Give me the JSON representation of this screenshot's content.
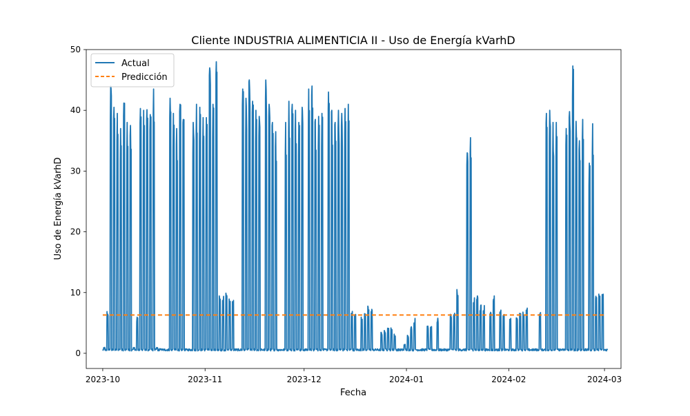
{
  "chart_data": {
    "type": "line",
    "title": "Cliente INDUSTRIA ALIMENTICIA II - Uso de Energía kVarhD",
    "xlabel": "Fecha",
    "ylabel": "Uso de Energía kVarhD",
    "xlim": [
      "2023-09-26",
      "2024-03-06"
    ],
    "ylim": [
      -2.5,
      50
    ],
    "x_ticks": [
      "2023-10-01",
      "2023-11-01",
      "2023-12-01",
      "2024-01-01",
      "2024-02-01",
      "2024-03-01"
    ],
    "x_tick_labels": [
      "2023-10",
      "2023-11",
      "2023-12",
      "2024-01",
      "2024-02",
      "2024-03"
    ],
    "y_ticks": [
      0,
      10,
      20,
      30,
      40,
      50
    ],
    "y_tick_labels": [
      "0",
      "10",
      "20",
      "30",
      "40",
      "50"
    ],
    "grid": false,
    "legend_position": "top-left",
    "baseline": 0.5,
    "series": [
      {
        "name": "Actual",
        "color": "#1f77b4",
        "style": "solid",
        "daily_peaks": [
          [
            "2023-10-01",
            1.0
          ],
          [
            "2023-10-02",
            7.0
          ],
          [
            "2023-10-03",
            44.0
          ],
          [
            "2023-10-04",
            40.5
          ],
          [
            "2023-10-05",
            39.5
          ],
          [
            "2023-10-06",
            37.0
          ],
          [
            "2023-10-07",
            41.2
          ],
          [
            "2023-10-08",
            38.0
          ],
          [
            "2023-10-09",
            37.5
          ],
          [
            "2023-10-10",
            1.0
          ],
          [
            "2023-10-11",
            6.0
          ],
          [
            "2023-10-12",
            40.3
          ],
          [
            "2023-10-13",
            40.0
          ],
          [
            "2023-10-14",
            40.1
          ],
          [
            "2023-10-15",
            39.3
          ],
          [
            "2023-10-16",
            43.5
          ],
          [
            "2023-10-17",
            1.0
          ],
          [
            "2023-10-18",
            0.8
          ],
          [
            "2023-10-21",
            42.0
          ],
          [
            "2023-10-22",
            39.5
          ],
          [
            "2023-10-23",
            37.0
          ],
          [
            "2023-10-24",
            41.0
          ],
          [
            "2023-10-25",
            38.5
          ],
          [
            "2023-10-28",
            38.0
          ],
          [
            "2023-10-29",
            41.0
          ],
          [
            "2023-10-30",
            40.5
          ],
          [
            "2023-10-31",
            38.8
          ],
          [
            "2023-11-01",
            38.8
          ],
          [
            "2023-11-02",
            47.0
          ],
          [
            "2023-11-03",
            41.0
          ],
          [
            "2023-11-04",
            48.0
          ],
          [
            "2023-11-05",
            9.5
          ],
          [
            "2023-11-06",
            9.6
          ],
          [
            "2023-11-07",
            11.0
          ],
          [
            "2023-11-08",
            9.5
          ],
          [
            "2023-11-09",
            9.0
          ],
          [
            "2023-11-12",
            43.5
          ],
          [
            "2023-11-13",
            42.0
          ],
          [
            "2023-11-14",
            45.0
          ],
          [
            "2023-11-15",
            41.5
          ],
          [
            "2023-11-16",
            40.0
          ],
          [
            "2023-11-17",
            39.0
          ],
          [
            "2023-11-19",
            45.0
          ],
          [
            "2023-11-20",
            41.0
          ],
          [
            "2023-11-21",
            38.0
          ],
          [
            "2023-11-22",
            36.5
          ],
          [
            "2023-11-25",
            38.0
          ],
          [
            "2023-11-26",
            41.5
          ],
          [
            "2023-11-27",
            41.0
          ],
          [
            "2023-11-28",
            40.0
          ],
          [
            "2023-11-29",
            38.0
          ],
          [
            "2023-11-30",
            40.5
          ],
          [
            "2023-12-02",
            43.5
          ],
          [
            "2023-12-03",
            44.0
          ],
          [
            "2023-12-04",
            38.5
          ],
          [
            "2023-12-05",
            39.0
          ],
          [
            "2023-12-06",
            39.5
          ],
          [
            "2023-12-08",
            43.0
          ],
          [
            "2023-12-09",
            40.0
          ],
          [
            "2023-12-10",
            38.0
          ],
          [
            "2023-12-11",
            40.0
          ],
          [
            "2023-12-12",
            39.5
          ],
          [
            "2023-12-13",
            40.3
          ],
          [
            "2023-12-14",
            41.0
          ],
          [
            "2023-12-15",
            7.0
          ],
          [
            "2023-12-16",
            6.5
          ],
          [
            "2023-12-18",
            6.5
          ],
          [
            "2023-12-19",
            7.0
          ],
          [
            "2023-12-20",
            7.8
          ],
          [
            "2023-12-21",
            7.5
          ],
          [
            "2023-12-24",
            3.5
          ],
          [
            "2023-12-25",
            3.8
          ],
          [
            "2023-12-26",
            4.8
          ],
          [
            "2023-12-27",
            4.2
          ],
          [
            "2023-12-28",
            3.3
          ],
          [
            "2023-12-31",
            1.5
          ],
          [
            "2024-01-01",
            3.0
          ],
          [
            "2024-01-02",
            4.5
          ],
          [
            "2024-01-03",
            5.8
          ],
          [
            "2024-01-07",
            4.5
          ],
          [
            "2024-01-08",
            4.8
          ],
          [
            "2024-01-10",
            5.8
          ],
          [
            "2024-01-14",
            6.7
          ],
          [
            "2024-01-15",
            6.8
          ],
          [
            "2024-01-16",
            10.5
          ],
          [
            "2024-01-19",
            33.0
          ],
          [
            "2024-01-20",
            35.5
          ],
          [
            "2024-01-21",
            9.5
          ],
          [
            "2024-01-22",
            9.5
          ],
          [
            "2024-01-23",
            8.0
          ],
          [
            "2024-01-24",
            8.0
          ],
          [
            "2024-01-26",
            7.3
          ],
          [
            "2024-01-27",
            9.6
          ],
          [
            "2024-01-29",
            7.5
          ],
          [
            "2024-01-30",
            6.5
          ],
          [
            "2024-02-01",
            5.8
          ],
          [
            "2024-02-03",
            6.0
          ],
          [
            "2024-02-04",
            7.5
          ],
          [
            "2024-02-05",
            7.3
          ],
          [
            "2024-02-06",
            7.5
          ],
          [
            "2024-02-10",
            7.0
          ],
          [
            "2024-02-12",
            39.5
          ],
          [
            "2024-02-13",
            40.0
          ],
          [
            "2024-02-14",
            38.0
          ],
          [
            "2024-02-15",
            38.0
          ],
          [
            "2024-02-18",
            37.0
          ],
          [
            "2024-02-19",
            39.8
          ],
          [
            "2024-02-20",
            47.3
          ],
          [
            "2024-02-21",
            38.2
          ],
          [
            "2024-02-22",
            35.0
          ],
          [
            "2024-02-23",
            38.5
          ],
          [
            "2024-02-25",
            31.3
          ],
          [
            "2024-02-26",
            37.8
          ],
          [
            "2024-02-27",
            10.5
          ],
          [
            "2024-02-28",
            10.0
          ],
          [
            "2024-02-29",
            10.0
          ]
        ]
      },
      {
        "name": "Predicción",
        "color": "#ff7f0e",
        "style": "dashed",
        "x": [
          "2023-10-01",
          "2024-03-01"
        ],
        "y": [
          6.3,
          6.3
        ]
      }
    ]
  }
}
